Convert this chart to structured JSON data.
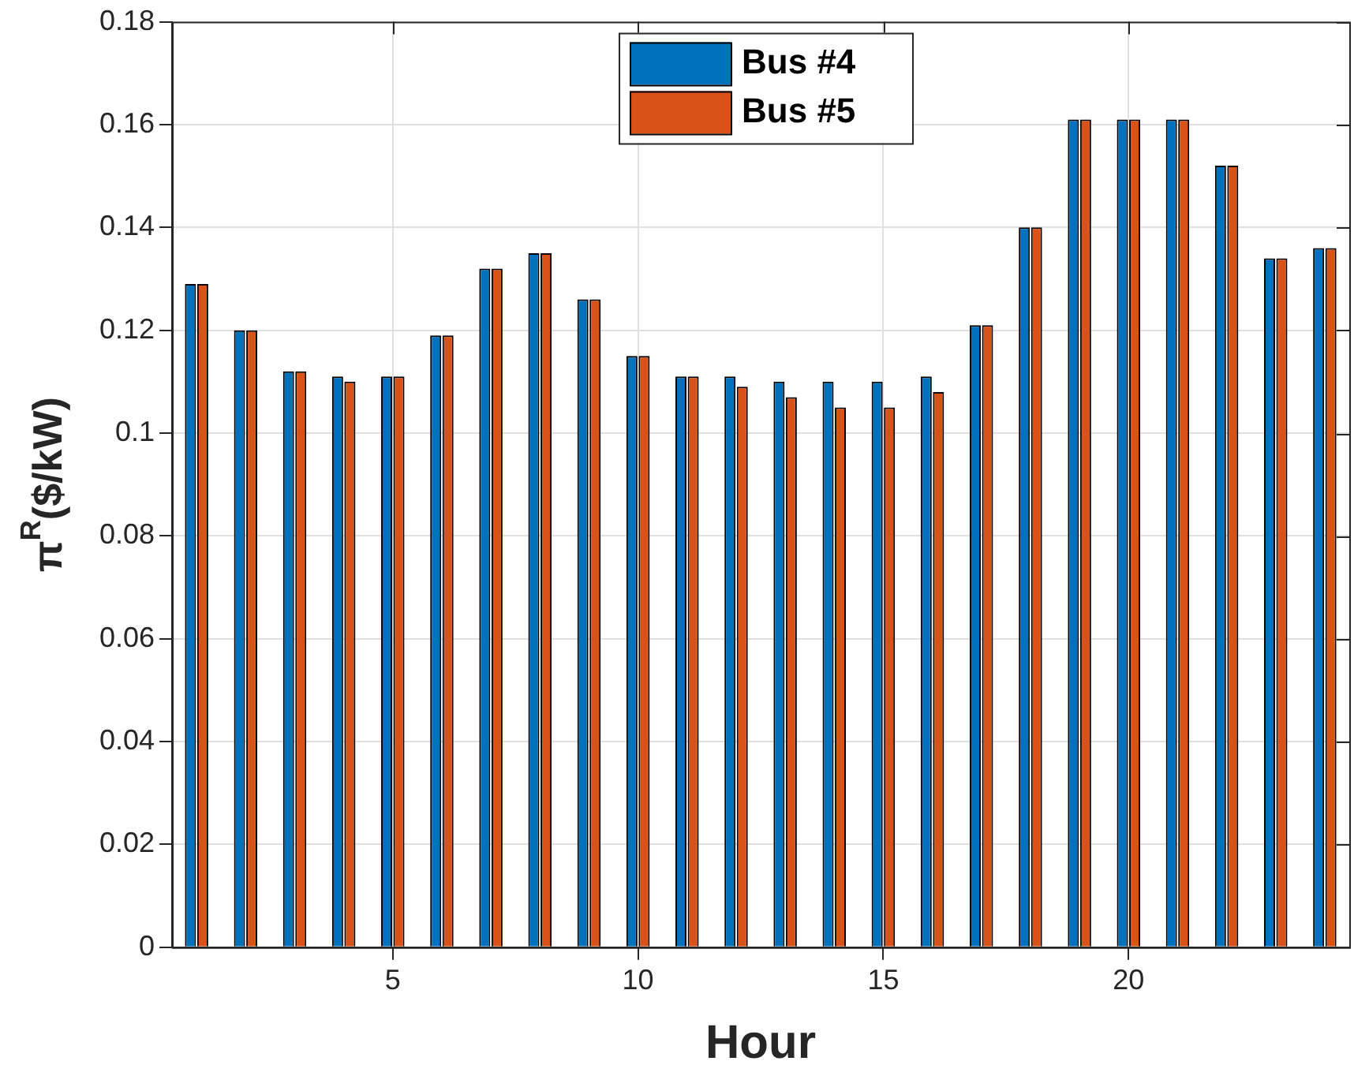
{
  "chart_data": {
    "type": "bar",
    "xlabel": "Hour",
    "ylabel": "π$^{R}$($/kW)",
    "x": [
      1,
      2,
      3,
      4,
      5,
      6,
      7,
      8,
      9,
      10,
      11,
      12,
      13,
      14,
      15,
      16,
      17,
      18,
      19,
      20,
      21,
      22,
      23,
      24
    ],
    "xlim": [
      0.5,
      24.5
    ],
    "xticks": [
      5,
      10,
      15,
      20
    ],
    "ylim": [
      0,
      0.18
    ],
    "yticks": [
      0,
      0.02,
      0.04,
      0.06,
      0.08,
      0.1,
      0.12,
      0.14,
      0.16,
      0.18
    ],
    "series": [
      {
        "name": "Bus #4",
        "color": "#0072bd",
        "values": [
          0.129,
          0.12,
          0.112,
          0.111,
          0.111,
          0.119,
          0.132,
          0.135,
          0.126,
          0.115,
          0.111,
          0.111,
          0.11,
          0.11,
          0.11,
          0.111,
          0.121,
          0.14,
          0.161,
          0.161,
          0.161,
          0.152,
          0.134,
          0.136
        ]
      },
      {
        "name": "Bus #5",
        "color": "#d95319",
        "values": [
          0.129,
          0.12,
          0.112,
          0.11,
          0.111,
          0.119,
          0.132,
          0.135,
          0.126,
          0.115,
          0.111,
          0.109,
          0.107,
          0.105,
          0.105,
          0.108,
          0.121,
          0.14,
          0.161,
          0.161,
          0.161,
          0.152,
          0.134,
          0.136
        ]
      }
    ],
    "grid": true,
    "legend": "top"
  }
}
